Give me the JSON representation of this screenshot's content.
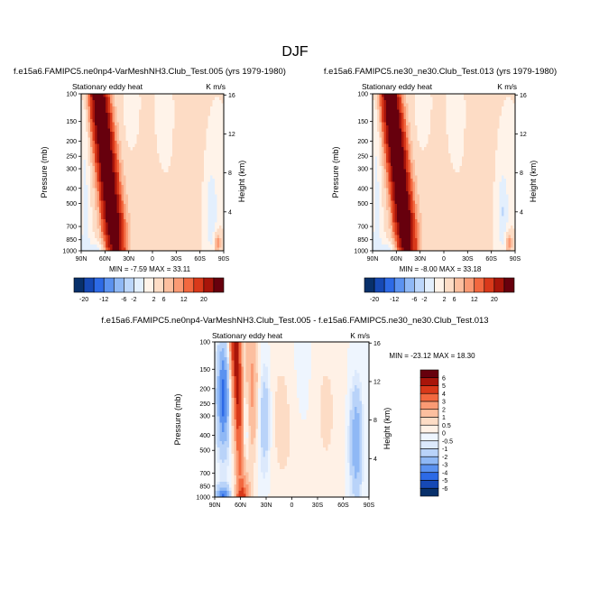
{
  "page_title": "DJF",
  "colors": {
    "abs_scale": [
      "#08306b",
      "#1649b5",
      "#2d6ae6",
      "#5b92f0",
      "#8fb8f5",
      "#bcd6fa",
      "#e3effd",
      "#fff3e9",
      "#fddcc5",
      "#fcbf9f",
      "#fa9a74",
      "#f2683f",
      "#d9391a",
      "#a8150a",
      "#67000d"
    ],
    "diff_scale": [
      "#08306b",
      "#1649b5",
      "#2d6ae6",
      "#5b92f0",
      "#8fb8f5",
      "#b9d3f9",
      "#dce9fc",
      "#eef5fe",
      "#fff1e6",
      "#fddcc5",
      "#fcbf9f",
      "#fa9a74",
      "#f2683f",
      "#d9391a",
      "#a8150a",
      "#67000d"
    ]
  },
  "chart_data": [
    {
      "type": "heatmap",
      "title": "f.e15a6.FAMIPC5.ne0np4-VarMeshNH3.Club_Test.005 (yrs 1979-1980)",
      "subtitle_left": "Stationary eddy heat",
      "units": "K m/s",
      "ylabel": "Pressure (mb)",
      "ylabel_right": "Height (km)",
      "x_ticks": [
        "90N",
        "60N",
        "30N",
        "0",
        "30S",
        "60S",
        "90S"
      ],
      "y_ticks": [
        "100",
        "150",
        "200",
        "250",
        "300",
        "400",
        "500",
        "700",
        "850",
        "1000"
      ],
      "y_right_ticks": [
        "16",
        "12",
        "8",
        "4"
      ],
      "stats_text": "MIN =  -7.59   MAX =  33.11",
      "min": -7.59,
      "max": 33.11
    },
    {
      "type": "heatmap",
      "title": "f.e15a6.FAMIPC5.ne30_ne30.Club_Test.013 (yrs 1979-1980)",
      "subtitle_left": "Stationary eddy heat",
      "units": "K m/s",
      "ylabel": "Pressure (mb)",
      "ylabel_right": "Height (km)",
      "x_ticks": [
        "90N",
        "60N",
        "30N",
        "0",
        "30S",
        "60S",
        "90S"
      ],
      "y_ticks": [
        "100",
        "150",
        "200",
        "250",
        "300",
        "400",
        "500",
        "700",
        "850",
        "1000"
      ],
      "y_right_ticks": [
        "16",
        "12",
        "8",
        "4"
      ],
      "stats_text": "MIN =  -8.00   MAX =  33.18",
      "min": -8.0,
      "max": 33.18
    },
    {
      "type": "heatmap",
      "title": "f.e15a6.FAMIPC5.ne0np4-VarMeshNH3.Club_Test.005 - f.e15a6.FAMIPC5.ne30_ne30.Club_Test.013",
      "subtitle_left": "Stationary eddy heat",
      "units": "K m/s",
      "ylabel": "Pressure (mb)",
      "ylabel_right": "Height (km)",
      "x_ticks": [
        "90N",
        "60N",
        "30N",
        "0",
        "30S",
        "60S",
        "90S"
      ],
      "y_ticks": [
        "100",
        "150",
        "200",
        "250",
        "300",
        "400",
        "500",
        "700",
        "850",
        "1000"
      ],
      "y_right_ticks": [
        "16",
        "12",
        "8",
        "4"
      ],
      "stats_text": "MIN = -23.12   MAX =  18.30",
      "min": -23.12,
      "max": 18.3
    }
  ],
  "colorbar_abs": {
    "labels": [
      "-20",
      "-12",
      "-6",
      "-2",
      "2",
      "6",
      "12",
      "20"
    ]
  },
  "colorbar_diff": {
    "labels": [
      "6",
      "5",
      "4",
      "3",
      "2",
      "1",
      "0.5",
      "0",
      "-0.5",
      "-1",
      "-2",
      "-3",
      "-4",
      "-5",
      "-6"
    ]
  }
}
